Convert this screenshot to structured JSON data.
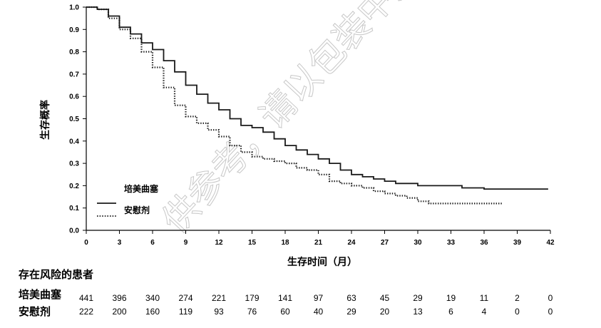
{
  "chart_data": {
    "type": "line",
    "ylabel": "生存概率",
    "xlabel": "生存时间（月）",
    "xlim": [
      0,
      42
    ],
    "ylim": [
      0,
      1.0
    ],
    "x_ticks": [
      "0",
      "3",
      "6",
      "9",
      "12",
      "15",
      "18",
      "21",
      "24",
      "27",
      "30",
      "33",
      "36",
      "39",
      "42"
    ],
    "y_ticks": [
      "0.0",
      "0.1",
      "0.2",
      "0.3",
      "0.4",
      "0.5",
      "0.6",
      "0.7",
      "0.8",
      "0.9",
      "1.0"
    ],
    "legend_position": "lower-left",
    "series": [
      {
        "name": "培美曲塞",
        "style": "solid",
        "color": "#1a1a1a",
        "points": [
          [
            0,
            1.0
          ],
          [
            1,
            0.99
          ],
          [
            2,
            0.96
          ],
          [
            3,
            0.91
          ],
          [
            4,
            0.88
          ],
          [
            5,
            0.84
          ],
          [
            6,
            0.81
          ],
          [
            7,
            0.76
          ],
          [
            8,
            0.71
          ],
          [
            9,
            0.65
          ],
          [
            10,
            0.61
          ],
          [
            11,
            0.57
          ],
          [
            12,
            0.54
          ],
          [
            13,
            0.5
          ],
          [
            14,
            0.47
          ],
          [
            15,
            0.46
          ],
          [
            16,
            0.44
          ],
          [
            17,
            0.41
          ],
          [
            18,
            0.38
          ],
          [
            19,
            0.36
          ],
          [
            20,
            0.34
          ],
          [
            21,
            0.32
          ],
          [
            22,
            0.3
          ],
          [
            23,
            0.27
          ],
          [
            24,
            0.25
          ],
          [
            25,
            0.24
          ],
          [
            26,
            0.23
          ],
          [
            27,
            0.22
          ],
          [
            28,
            0.21
          ],
          [
            30,
            0.2
          ],
          [
            32,
            0.2
          ],
          [
            33,
            0.2
          ],
          [
            34,
            0.19
          ],
          [
            36,
            0.185
          ],
          [
            38,
            0.185
          ],
          [
            41.8,
            0.185
          ]
        ]
      },
      {
        "name": "安慰剂",
        "style": "dotted",
        "color": "#1a1a1a",
        "points": [
          [
            0,
            1.0
          ],
          [
            1,
            0.99
          ],
          [
            2,
            0.95
          ],
          [
            3,
            0.9
          ],
          [
            4,
            0.86
          ],
          [
            5,
            0.8
          ],
          [
            6,
            0.73
          ],
          [
            7,
            0.64
          ],
          [
            8,
            0.56
          ],
          [
            9,
            0.51
          ],
          [
            10,
            0.48
          ],
          [
            11,
            0.45
          ],
          [
            12,
            0.42
          ],
          [
            13,
            0.38
          ],
          [
            14,
            0.35
          ],
          [
            15,
            0.33
          ],
          [
            16,
            0.32
          ],
          [
            17,
            0.31
          ],
          [
            18,
            0.3
          ],
          [
            19,
            0.28
          ],
          [
            20,
            0.27
          ],
          [
            21,
            0.25
          ],
          [
            22,
            0.22
          ],
          [
            23,
            0.21
          ],
          [
            24,
            0.2
          ],
          [
            25,
            0.19
          ],
          [
            26,
            0.175
          ],
          [
            27,
            0.165
          ],
          [
            28,
            0.155
          ],
          [
            29,
            0.145
          ],
          [
            30,
            0.13
          ],
          [
            31,
            0.12
          ],
          [
            32,
            0.12
          ],
          [
            34,
            0.12
          ],
          [
            36,
            0.12
          ],
          [
            37.6,
            0.12
          ]
        ]
      }
    ]
  },
  "risk_table": {
    "title": "存在风险的患者",
    "rows": [
      {
        "label": "培美曲塞",
        "values": [
          "441",
          "396",
          "340",
          "274",
          "221",
          "179",
          "141",
          "97",
          "63",
          "45",
          "29",
          "19",
          "11",
          "2",
          "0"
        ]
      },
      {
        "label": "安慰剂",
        "values": [
          "222",
          "200",
          "160",
          "119",
          "93",
          "76",
          "60",
          "40",
          "29",
          "20",
          "13",
          "6",
          "4",
          "0",
          "0"
        ]
      }
    ]
  },
  "watermark": "供参考，请以包装中所附",
  "colors": {
    "line": "#1a1a1a",
    "axis": "#000000",
    "watermark": "#c8c8c8"
  }
}
